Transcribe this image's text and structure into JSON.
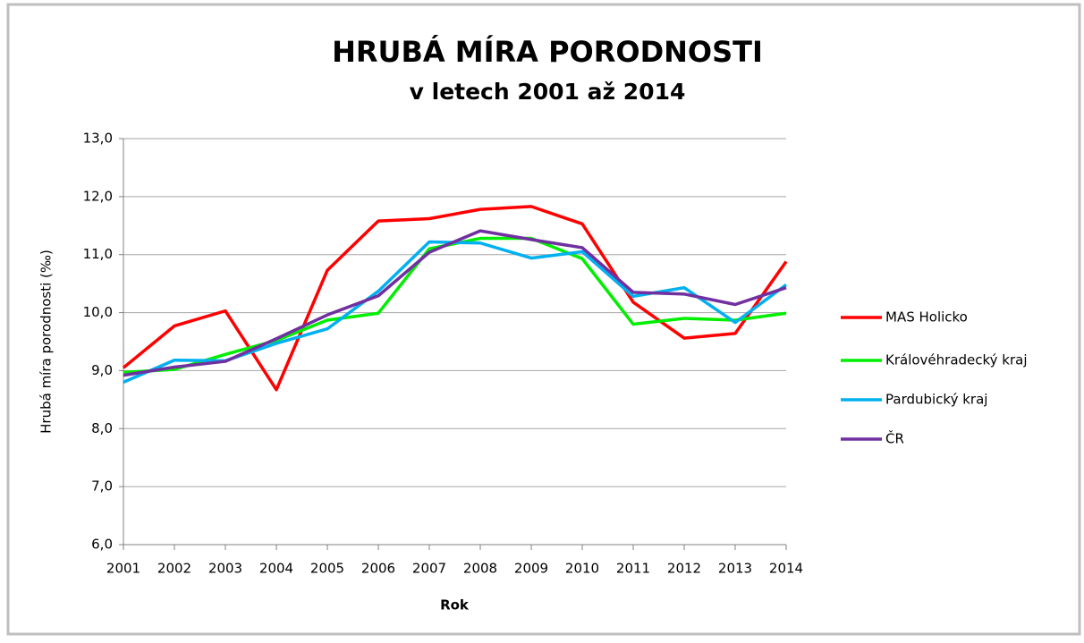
{
  "chart_data": {
    "type": "line",
    "title": "HRUBÁ MÍRA PORODNOSTI",
    "subtitle": "v letech 2001 až 2014",
    "x_label": "Rok",
    "y_label": "Hrubá míra porodnosti (‰)",
    "categories": [
      "2001",
      "2002",
      "2003",
      "2004",
      "2005",
      "2006",
      "2007",
      "2008",
      "2009",
      "2010",
      "2011",
      "2012",
      "2013",
      "2014"
    ],
    "series": [
      {
        "name": "MAS Holicko",
        "color": "#ff0000",
        "values": [
          9.05,
          9.77,
          10.03,
          8.67,
          10.73,
          11.58,
          11.62,
          11.78,
          11.83,
          11.53,
          10.18,
          9.56,
          9.64,
          10.88
        ]
      },
      {
        "name": "Královéhradecký kraj",
        "color": "#00ee00",
        "values": [
          8.97,
          9.02,
          9.28,
          9.52,
          9.87,
          9.99,
          11.1,
          11.28,
          11.28,
          10.93,
          9.8,
          9.9,
          9.87,
          9.99
        ]
      },
      {
        "name": "Pardubický kraj",
        "color": "#00b0f0",
        "values": [
          8.8,
          9.18,
          9.17,
          9.47,
          9.72,
          10.37,
          11.22,
          11.2,
          10.94,
          11.05,
          10.28,
          10.43,
          9.83,
          10.48
        ]
      },
      {
        "name": "ČR",
        "color": "#7030a0",
        "values": [
          8.92,
          9.06,
          9.16,
          9.55,
          9.96,
          10.29,
          11.04,
          11.41,
          11.26,
          11.12,
          10.35,
          10.32,
          10.14,
          10.43
        ]
      }
    ],
    "ylim": [
      6,
      13
    ],
    "yticks": [
      {
        "value": 6,
        "label": "6,0"
      },
      {
        "value": 7,
        "label": "7,0"
      },
      {
        "value": 8,
        "label": "8,0"
      },
      {
        "value": 9,
        "label": "9,0"
      },
      {
        "value": 10,
        "label": "10,0"
      },
      {
        "value": 11,
        "label": "11,0"
      },
      {
        "value": 12,
        "label": "12,0"
      },
      {
        "value": 13,
        "label": "13,0"
      }
    ],
    "grid": true,
    "legend": "right"
  }
}
